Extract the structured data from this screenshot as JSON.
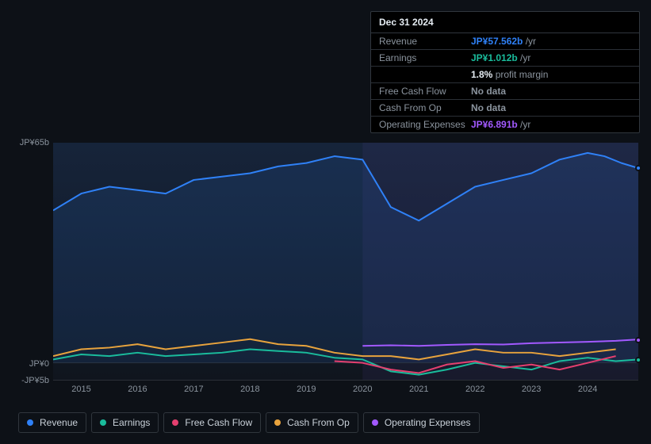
{
  "tooltip": {
    "date": "Dec 31 2024",
    "rows": [
      {
        "label": "Revenue",
        "value": "JP¥57.562b",
        "suffix": "/yr",
        "color": "#2f81f7"
      },
      {
        "label": "Earnings",
        "value": "JP¥1.012b",
        "suffix": "/yr",
        "color": "#1abc9c"
      },
      {
        "label": "",
        "value": "1.8%",
        "suffix": "profit margin",
        "color": "#e6edf3"
      },
      {
        "label": "Free Cash Flow",
        "value": "No data",
        "suffix": "",
        "color": "#8b949e"
      },
      {
        "label": "Cash From Op",
        "value": "No data",
        "suffix": "",
        "color": "#8b949e"
      },
      {
        "label": "Operating Expenses",
        "value": "JP¥6.891b",
        "suffix": "/yr",
        "color": "#a259ff"
      }
    ]
  },
  "chart": {
    "type": "line",
    "background": "#0d1117",
    "plot_bg_gradient": [
      "#16243a",
      "#10151e"
    ],
    "grid_color": "#2a2f36",
    "y_axis": {
      "ticks": [
        {
          "label": "JP¥65b",
          "value": 65
        },
        {
          "label": "JP¥0",
          "value": 0
        },
        {
          "label": "-JP¥5b",
          "value": -5
        }
      ],
      "min": -5,
      "max": 65,
      "label_fontsize": 11,
      "label_color": "#8b949e"
    },
    "x_axis": {
      "min": 2014.5,
      "max": 2024.9,
      "ticks": [
        2015,
        2016,
        2017,
        2018,
        2019,
        2020,
        2021,
        2022,
        2023,
        2024
      ],
      "label_fontsize": 11,
      "label_color": "#8b949e"
    },
    "future_start": 2020.0,
    "series": [
      {
        "name": "Revenue",
        "color": "#2f81f7",
        "line_width": 2,
        "fill_opacity": 0.12,
        "data": [
          [
            2014.5,
            45
          ],
          [
            2015.0,
            50
          ],
          [
            2015.5,
            52
          ],
          [
            2016.0,
            51
          ],
          [
            2016.5,
            50
          ],
          [
            2017.0,
            54
          ],
          [
            2017.5,
            55
          ],
          [
            2018.0,
            56
          ],
          [
            2018.5,
            58
          ],
          [
            2019.0,
            59
          ],
          [
            2019.5,
            61
          ],
          [
            2020.0,
            60
          ],
          [
            2020.5,
            46
          ],
          [
            2021.0,
            42
          ],
          [
            2021.5,
            47
          ],
          [
            2022.0,
            52
          ],
          [
            2022.5,
            54
          ],
          [
            2023.0,
            56
          ],
          [
            2023.5,
            60
          ],
          [
            2024.0,
            62
          ],
          [
            2024.3,
            61
          ],
          [
            2024.6,
            59
          ],
          [
            2024.9,
            57.5
          ]
        ]
      },
      {
        "name": "Earnings",
        "color": "#1abc9c",
        "line_width": 2,
        "fill_opacity": 0,
        "data": [
          [
            2014.5,
            1.0
          ],
          [
            2015.0,
            2.5
          ],
          [
            2015.5,
            2.0
          ],
          [
            2016.0,
            3.0
          ],
          [
            2016.5,
            2.0
          ],
          [
            2017.0,
            2.5
          ],
          [
            2017.5,
            3.0
          ],
          [
            2018.0,
            4.0
          ],
          [
            2018.5,
            3.5
          ],
          [
            2019.0,
            3.0
          ],
          [
            2019.5,
            1.5
          ],
          [
            2020.0,
            1.0
          ],
          [
            2020.5,
            -2.5
          ],
          [
            2021.0,
            -3.5
          ],
          [
            2021.5,
            -2.0
          ],
          [
            2022.0,
            0.0
          ],
          [
            2022.5,
            -1.0
          ],
          [
            2023.0,
            -2.0
          ],
          [
            2023.5,
            0.5
          ],
          [
            2024.0,
            1.5
          ],
          [
            2024.5,
            0.5
          ],
          [
            2024.9,
            1.0
          ]
        ]
      },
      {
        "name": "Free Cash Flow",
        "color": "#e43f6f",
        "line_width": 2,
        "fill_opacity": 0,
        "data": [
          [
            2019.5,
            0.5
          ],
          [
            2020.0,
            0.0
          ],
          [
            2020.5,
            -2.0
          ],
          [
            2021.0,
            -3.0
          ],
          [
            2021.5,
            -0.5
          ],
          [
            2022.0,
            0.5
          ],
          [
            2022.5,
            -1.5
          ],
          [
            2023.0,
            -0.5
          ],
          [
            2023.5,
            -2.0
          ],
          [
            2024.0,
            0.0
          ],
          [
            2024.5,
            2.0
          ]
        ]
      },
      {
        "name": "Cash From Op",
        "color": "#e8a33d",
        "line_width": 2,
        "fill_opacity": 0,
        "data": [
          [
            2014.5,
            2.0
          ],
          [
            2015.0,
            4.0
          ],
          [
            2015.5,
            4.5
          ],
          [
            2016.0,
            5.5
          ],
          [
            2016.5,
            4.0
          ],
          [
            2017.0,
            5.0
          ],
          [
            2017.5,
            6.0
          ],
          [
            2018.0,
            7.0
          ],
          [
            2018.5,
            5.5
          ],
          [
            2019.0,
            5.0
          ],
          [
            2019.5,
            3.0
          ],
          [
            2020.0,
            2.0
          ],
          [
            2020.5,
            2.0
          ],
          [
            2021.0,
            1.0
          ],
          [
            2021.5,
            2.5
          ],
          [
            2022.0,
            4.0
          ],
          [
            2022.5,
            3.0
          ],
          [
            2023.0,
            3.0
          ],
          [
            2023.5,
            2.0
          ],
          [
            2024.0,
            3.0
          ],
          [
            2024.5,
            4.0
          ]
        ]
      },
      {
        "name": "Operating Expenses",
        "color": "#a259ff",
        "line_width": 2,
        "fill_opacity": 0,
        "data": [
          [
            2020.0,
            5.0
          ],
          [
            2020.5,
            5.2
          ],
          [
            2021.0,
            5.0
          ],
          [
            2021.5,
            5.3
          ],
          [
            2022.0,
            5.5
          ],
          [
            2022.5,
            5.4
          ],
          [
            2023.0,
            5.8
          ],
          [
            2023.5,
            6.0
          ],
          [
            2024.0,
            6.2
          ],
          [
            2024.5,
            6.5
          ],
          [
            2024.9,
            6.9
          ]
        ]
      }
    ],
    "end_markers": [
      {
        "series": "Revenue",
        "color": "#2f81f7"
      },
      {
        "series": "Operating Expenses",
        "color": "#a259ff"
      },
      {
        "series": "Earnings",
        "color": "#1abc9c"
      }
    ]
  },
  "legend": {
    "items": [
      {
        "label": "Revenue",
        "color": "#2f81f7"
      },
      {
        "label": "Earnings",
        "color": "#1abc9c"
      },
      {
        "label": "Free Cash Flow",
        "color": "#e43f6f"
      },
      {
        "label": "Cash From Op",
        "color": "#e8a33d"
      },
      {
        "label": "Operating Expenses",
        "color": "#a259ff"
      }
    ],
    "border_color": "#30363d",
    "text_color": "#c9d1d9",
    "fontsize": 12
  }
}
